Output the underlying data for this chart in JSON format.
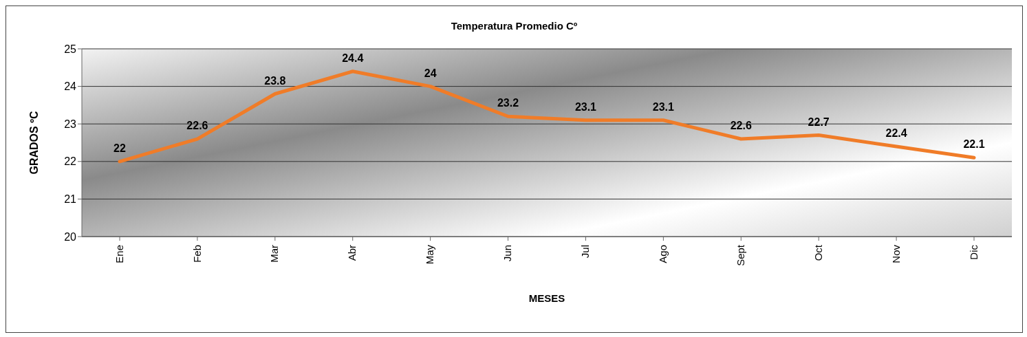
{
  "chart_data": {
    "type": "line",
    "title": "Temperatura Promedio Cº",
    "xlabel": "MESES",
    "ylabel": "GRADOS ºC",
    "categories": [
      "Ene",
      "Feb",
      "Mar",
      "Abr",
      "May",
      "Jun",
      "Jul",
      "Ago",
      "Sept",
      "Oct",
      "Nov",
      "Dic"
    ],
    "series": [
      {
        "color": "#f07c28",
        "values": [
          22,
          22.6,
          23.8,
          24.4,
          24,
          23.2,
          23.1,
          23.1,
          22.6,
          22.7,
          22.4,
          22.1
        ]
      }
    ],
    "ylim": [
      20,
      25
    ],
    "yticks": [
      20,
      21,
      22,
      23,
      24,
      25
    ],
    "grid": "y",
    "data_labels": true,
    "marker": "none",
    "line_style": "solid",
    "legend": false
  }
}
